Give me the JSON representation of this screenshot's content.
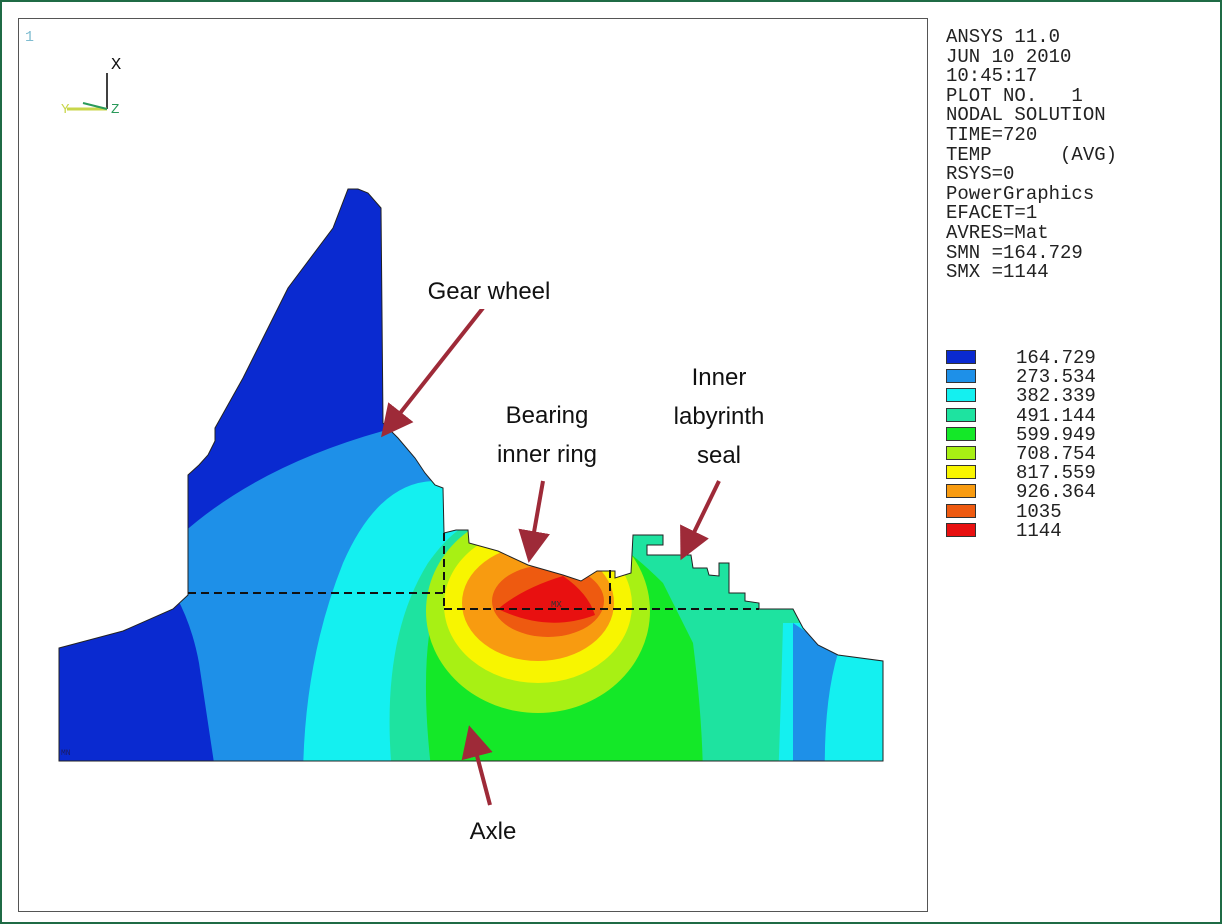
{
  "plot": {
    "window_number": "1",
    "triad": {
      "x_label": "X",
      "y_label": "Y",
      "z_label": "Z"
    }
  },
  "info": {
    "lines": [
      "ANSYS 11.0",
      "JUN 10 2010",
      "10:45:17",
      "PLOT NO.   1",
      "NODAL SOLUTION",
      "TIME=720",
      "TEMP      (AVG)",
      "RSYS=0",
      "PowerGraphics",
      "EFACET=1",
      "AVRES=Mat",
      "SMN =164.729",
      "SMX =1144"
    ]
  },
  "legend": {
    "items": [
      {
        "value": "164.729",
        "color": "#0a2ad0"
      },
      {
        "value": "273.534",
        "color": "#1e90e8"
      },
      {
        "value": "382.339",
        "color": "#14f0f0"
      },
      {
        "value": "491.144",
        "color": "#1ee3a0"
      },
      {
        "value": "599.949",
        "color": "#14e828"
      },
      {
        "value": "708.754",
        "color": "#a8f014"
      },
      {
        "value": "817.559",
        "color": "#f8f500"
      },
      {
        "value": "926.364",
        "color": "#f89b10"
      },
      {
        "value": "1035",
        "color": "#ee5a10"
      },
      {
        "value": "1144",
        "color": "#e81010"
      }
    ]
  },
  "annotations": {
    "gear_wheel": "Gear wheel",
    "bearing_line1": "Bearing",
    "bearing_line2": "inner ring",
    "seal_line1": "Inner",
    "seal_line2": "labyrinth",
    "seal_line3": "seal",
    "axle": "Axle",
    "mx_marker": "MX",
    "mn_marker": "MN"
  },
  "colors": {
    "arrow": "#9e2a38",
    "frame_border": "#1f6b45",
    "triad_x": "#000000",
    "triad_y": "#c8d64a",
    "triad_z": "#2a9a5a"
  }
}
